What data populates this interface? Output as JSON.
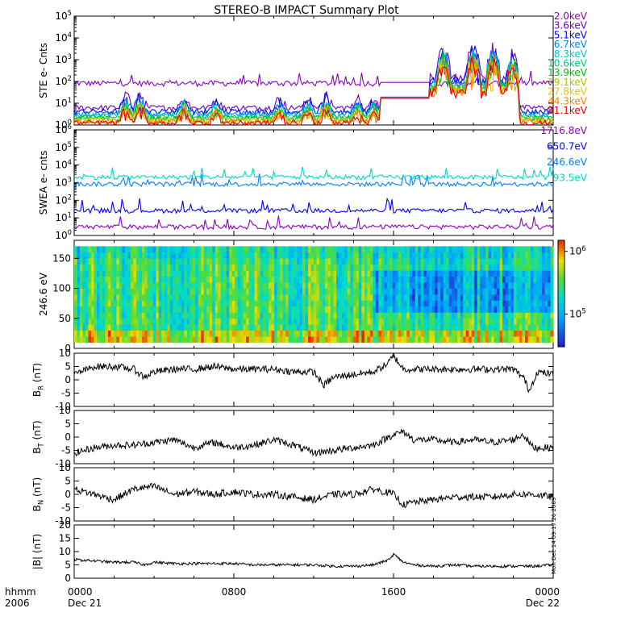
{
  "title": "STEREO-B IMPACT Summary Plot",
  "side_note": "Mon Dec 14 09:17:26 2009",
  "x_axis": {
    "corner_top": "hhmm",
    "corner_bottom": "2006",
    "ticks": [
      {
        "t": 0,
        "top": "0000",
        "bottom": "Dec 21"
      },
      {
        "t": 8,
        "top": "0800",
        "bottom": ""
      },
      {
        "t": 16,
        "top": "1600",
        "bottom": ""
      },
      {
        "t": 24,
        "top": "0000",
        "bottom": "Dec 22"
      }
    ],
    "range_hours": [
      0,
      24
    ]
  },
  "chart_data": [
    {
      "type": "line",
      "panel": "ste",
      "ylabel": "STE e- Cnts",
      "yscale": "log",
      "ylim": [
        1,
        100000
      ],
      "ytick_labels": [
        "10^0",
        "10^1",
        "10^2",
        "10^3",
        "10^4",
        "10^5"
      ],
      "series": [
        {
          "name": "2.0keV",
          "color": "#8b00c8",
          "base": 80
        },
        {
          "name": "3.6keV",
          "color": "#6a00c8",
          "base": 6
        },
        {
          "name": "5.1keV",
          "color": "#0000ff",
          "base": 4
        },
        {
          "name": "6.7keV",
          "color": "#0080ff",
          "base": 3.2
        },
        {
          "name": "8.3keV",
          "color": "#00c8c8",
          "base": 2.6
        },
        {
          "name": "10.6keV",
          "color": "#00c878",
          "base": 2.2
        },
        {
          "name": "13.9keV",
          "color": "#00c000",
          "base": 1.9
        },
        {
          "name": "19.1keV",
          "color": "#a0c800",
          "base": 1.7
        },
        {
          "name": "27.8keV",
          "color": "#f0c000",
          "base": 1.5
        },
        {
          "name": "44.3keV",
          "color": "#ff8000",
          "base": 1.35
        },
        {
          "name": "81.1keV",
          "color": "#e00000",
          "base": 1.2
        }
      ]
    },
    {
      "type": "line",
      "panel": "swea",
      "ylabel": "SWEA e- cnts",
      "yscale": "log",
      "ylim": [
        1,
        1000000
      ],
      "ytick_labels": [
        "10^0",
        "10^1",
        "10^2",
        "10^3",
        "10^4",
        "10^5",
        "10^6"
      ],
      "series": [
        {
          "name": "1716.8eV",
          "color": "#8b00c8",
          "base": 3
        },
        {
          "name": "650.7eV",
          "color": "#0000ff",
          "base": 25
        },
        {
          "name": "246.6eV",
          "color": "#0080ff",
          "base": 800
        },
        {
          "name": "93.5eV",
          "color": "#00d8c8",
          "base": 2000
        }
      ]
    },
    {
      "type": "heatmap",
      "panel": "pad",
      "ylabel": "246.6 eV",
      "ylim": [
        0,
        180
      ],
      "yticks": [
        0,
        50,
        100,
        150
      ],
      "colorbar": {
        "labels": [
          "10^5",
          "10^6"
        ],
        "label_values": [
          100000,
          1000000
        ],
        "range": [
          30000,
          1500000
        ],
        "scale": "log"
      }
    },
    {
      "type": "line",
      "panel": "br",
      "ylabel": "B_R (nT)",
      "ylim": [
        -10,
        10
      ],
      "yticks": [
        10,
        5,
        0,
        -5,
        -10
      ],
      "color": "#000000",
      "anchors": [
        [
          0,
          2
        ],
        [
          1,
          5
        ],
        [
          2,
          5
        ],
        [
          3,
          4
        ],
        [
          3.5,
          1
        ],
        [
          4,
          3
        ],
        [
          5,
          4
        ],
        [
          6,
          4
        ],
        [
          7,
          5
        ],
        [
          8,
          4
        ],
        [
          9,
          4
        ],
        [
          10,
          4
        ],
        [
          11,
          3
        ],
        [
          12,
          3
        ],
        [
          12.5,
          -2
        ],
        [
          13,
          1
        ],
        [
          14,
          2
        ],
        [
          15,
          3
        ],
        [
          15.7,
          6
        ],
        [
          16,
          9
        ],
        [
          16.5,
          4
        ],
        [
          17,
          4
        ],
        [
          18,
          4
        ],
        [
          19,
          4
        ],
        [
          20,
          4
        ],
        [
          21,
          4
        ],
        [
          22,
          4
        ],
        [
          22.5,
          1
        ],
        [
          22.8,
          -4
        ],
        [
          23.2,
          3
        ],
        [
          24,
          2
        ]
      ]
    },
    {
      "type": "line",
      "panel": "bt",
      "ylabel": "B_T (nT)",
      "ylim": [
        -10,
        10
      ],
      "yticks": [
        10,
        5,
        0,
        -5,
        -10
      ],
      "color": "#000000",
      "anchors": [
        [
          0,
          -6
        ],
        [
          1,
          -4
        ],
        [
          2,
          -3
        ],
        [
          3,
          -3
        ],
        [
          4,
          -2
        ],
        [
          5,
          -1
        ],
        [
          6,
          -4
        ],
        [
          7,
          -2
        ],
        [
          8,
          -4
        ],
        [
          9,
          -3
        ],
        [
          10,
          -1
        ],
        [
          11,
          -3
        ],
        [
          12,
          -6
        ],
        [
          13,
          -5
        ],
        [
          14,
          -4
        ],
        [
          15,
          -3
        ],
        [
          15.5,
          -1
        ],
        [
          16,
          1
        ],
        [
          16.5,
          2
        ],
        [
          17,
          -1
        ],
        [
          18,
          -1
        ],
        [
          19,
          -2
        ],
        [
          20,
          -1
        ],
        [
          21,
          -2
        ],
        [
          22,
          -1
        ],
        [
          22.5,
          1
        ],
        [
          23,
          -4
        ],
        [
          24,
          -4
        ]
      ]
    },
    {
      "type": "line",
      "panel": "bn",
      "ylabel": "B_N (nT)",
      "ylim": [
        -10,
        10
      ],
      "yticks": [
        10,
        5,
        0,
        -5,
        -10
      ],
      "color": "#000000",
      "anchors": [
        [
          0,
          2
        ],
        [
          1,
          0
        ],
        [
          2,
          -2
        ],
        [
          3,
          2
        ],
        [
          4,
          3
        ],
        [
          5,
          0
        ],
        [
          6,
          1
        ],
        [
          7,
          0
        ],
        [
          8,
          1
        ],
        [
          9,
          0
        ],
        [
          10,
          0
        ],
        [
          11,
          -1
        ],
        [
          12,
          -2
        ],
        [
          13,
          0
        ],
        [
          14,
          0
        ],
        [
          15,
          2
        ],
        [
          16,
          0
        ],
        [
          16.5,
          -4
        ],
        [
          17,
          -3
        ],
        [
          18,
          -2
        ],
        [
          19,
          -1
        ],
        [
          20,
          -1
        ],
        [
          21,
          -1
        ],
        [
          22,
          0
        ],
        [
          23,
          0
        ],
        [
          24,
          -1
        ]
      ]
    },
    {
      "type": "line",
      "panel": "bmag",
      "ylabel": "|B| (nT)",
      "ylim": [
        0,
        20
      ],
      "yticks": [
        20,
        15,
        10,
        5,
        0
      ],
      "color": "#000000",
      "anchors": [
        [
          0,
          7
        ],
        [
          1,
          6.5
        ],
        [
          2,
          6
        ],
        [
          3,
          6
        ],
        [
          3.5,
          5
        ],
        [
          4,
          6
        ],
        [
          5,
          5.5
        ],
        [
          6,
          5.5
        ],
        [
          7,
          5.5
        ],
        [
          8,
          5.5
        ],
        [
          9,
          5
        ],
        [
          10,
          5
        ],
        [
          11,
          5
        ],
        [
          12,
          5
        ],
        [
          13,
          4.5
        ],
        [
          14,
          4.5
        ],
        [
          15,
          5
        ],
        [
          15.8,
          7
        ],
        [
          16,
          9
        ],
        [
          16.5,
          6
        ],
        [
          17,
          5
        ],
        [
          18,
          4.5
        ],
        [
          19,
          5
        ],
        [
          20,
          4.5
        ],
        [
          21,
          4.5
        ],
        [
          22,
          4.5
        ],
        [
          23,
          4.5
        ],
        [
          24,
          5
        ]
      ]
    }
  ]
}
